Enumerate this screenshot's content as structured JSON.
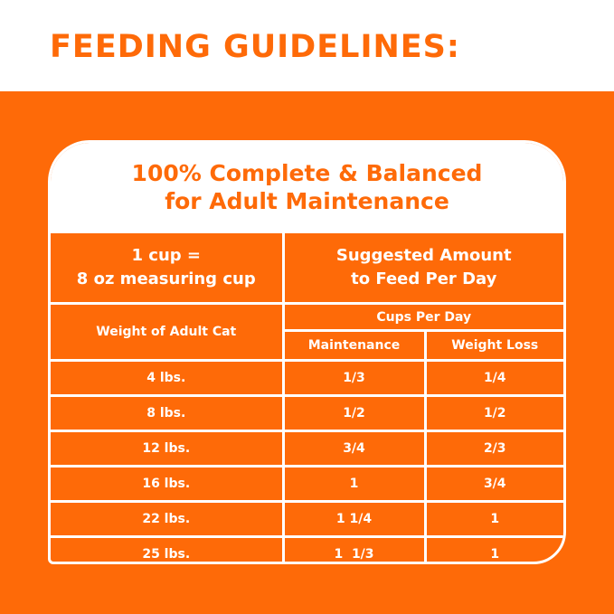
{
  "title": "FEEDING GUIDELINES:",
  "card": {
    "heading_line1": "100% Complete & Balanced",
    "heading_line2": "for Adult Maintenance"
  },
  "table": {
    "cup_line1": "1 cup =",
    "cup_line2": "8 oz measuring cup",
    "suggested_line1": "Suggested Amount",
    "suggested_line2": "to Feed Per Day",
    "weight_header": "Weight of Adult Cat",
    "cups_header": "Cups Per Day",
    "maintenance_header": "Maintenance",
    "weight_loss_header": "Weight Loss",
    "rows": [
      {
        "weight": "4 lbs.",
        "maintenance": "1/3",
        "weight_loss": "1/4"
      },
      {
        "weight": "8 lbs.",
        "maintenance": "1/2",
        "weight_loss": "1/2"
      },
      {
        "weight": "12 lbs.",
        "maintenance": "3/4",
        "weight_loss": "2/3"
      },
      {
        "weight": "16 lbs.",
        "maintenance": "1",
        "weight_loss": "3/4"
      },
      {
        "weight": "22 lbs.",
        "maintenance": "1 1/4",
        "weight_loss": "1"
      },
      {
        "weight": "25 lbs.",
        "maintenance": "1  1/3",
        "weight_loss": "1"
      }
    ]
  },
  "colors": {
    "brand_orange": "#fe6a08",
    "white": "#ffffff"
  }
}
